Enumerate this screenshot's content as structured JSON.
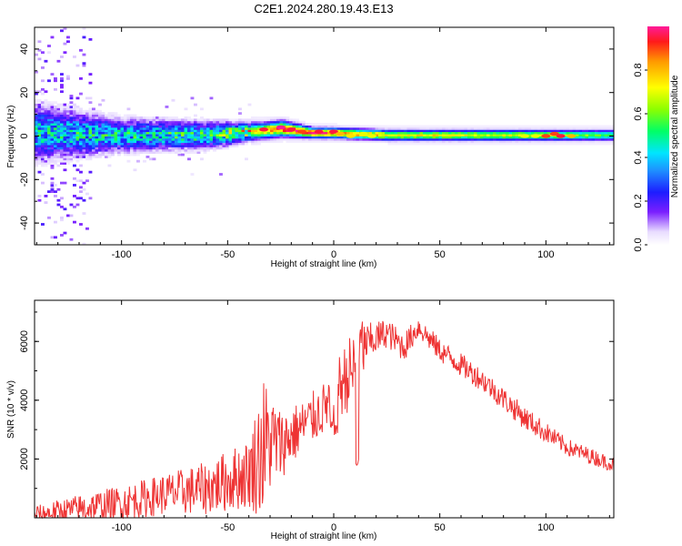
{
  "title": "C2E1.2024.280.19.43.E13",
  "chart_data": [
    {
      "type": "heatmap",
      "xlabel": "Height of straight line (km)",
      "ylabel": "Frequency (Hz)",
      "xlim": [
        -141,
        132
      ],
      "ylim": [
        -50,
        50
      ],
      "x_ticks": [
        -100,
        -50,
        0,
        50,
        100
      ],
      "y_ticks": [
        -40,
        -20,
        0,
        20,
        40
      ],
      "colorbar": {
        "label": "Normalized spectral amplitude",
        "range": [
          0,
          1
        ],
        "ticks": [
          "0.0",
          "0.2",
          "0.4",
          "0.6",
          "0.8"
        ],
        "tick_values": [
          0,
          0.2,
          0.4,
          0.6,
          0.8
        ]
      },
      "band_profile": [
        {
          "x": -141,
          "center": 1,
          "halfwidth": 10,
          "peak_amplitude": 0.45
        },
        {
          "x": -100,
          "center": 0,
          "halfwidth": 6,
          "peak_amplitude": 0.45
        },
        {
          "x": -60,
          "center": 0,
          "halfwidth": 5,
          "peak_amplitude": 0.5
        },
        {
          "x": -35,
          "center": 2,
          "halfwidth": 3,
          "peak_amplitude": 0.8
        },
        {
          "x": -25,
          "center": 3,
          "halfwidth": 3,
          "peak_amplitude": 0.95
        },
        {
          "x": -10,
          "center": 1,
          "halfwidth": 2,
          "peak_amplitude": 0.95
        },
        {
          "x": 0,
          "center": 1,
          "halfwidth": 2,
          "peak_amplitude": 0.9
        },
        {
          "x": 25,
          "center": 0,
          "halfwidth": 2,
          "peak_amplitude": 0.75
        },
        {
          "x": 100,
          "center": 0,
          "halfwidth": 2,
          "peak_amplitude": 0.7
        },
        {
          "x": 132,
          "center": 0,
          "halfwidth": 2,
          "peak_amplitude": 0.55
        }
      ],
      "hotspots": [
        {
          "x": -33,
          "y": 3,
          "amplitude": 0.95
        },
        {
          "x": -25,
          "y": 4,
          "amplitude": 1.0
        },
        {
          "x": -20,
          "y": 3,
          "amplitude": 0.95
        },
        {
          "x": -15,
          "y": 2,
          "amplitude": 0.9
        },
        {
          "x": -7,
          "y": 2,
          "amplitude": 0.95
        },
        {
          "x": 0,
          "y": 2,
          "amplitude": 0.95
        },
        {
          "x": 3,
          "y": 1,
          "amplitude": 0.8
        },
        {
          "x": 8,
          "y": 0,
          "amplitude": 0.75
        },
        {
          "x": 14,
          "y": 1,
          "amplitude": 0.7
        },
        {
          "x": 18,
          "y": 0,
          "amplitude": 0.7
        },
        {
          "x": 90,
          "y": 0,
          "amplitude": 0.7
        },
        {
          "x": 95,
          "y": 0,
          "amplitude": 0.7
        },
        {
          "x": 100,
          "y": 0,
          "amplitude": 0.9
        },
        {
          "x": 104,
          "y": 1,
          "amplitude": 0.9
        },
        {
          "x": 107,
          "y": 0,
          "amplitude": 0.95
        },
        {
          "x": 112,
          "y": 0,
          "amplitude": 0.8
        }
      ]
    },
    {
      "type": "line",
      "xlabel": "Height of straight line (km)",
      "ylabel": "SNR (10 * v/v)",
      "xlim": [
        -141,
        132
      ],
      "ylim": [
        0,
        7400
      ],
      "x_ticks": [
        -100,
        -50,
        0,
        50,
        100
      ],
      "y_ticks": [
        2000,
        4000,
        6000
      ],
      "color": "#ee3333",
      "envelope": [
        {
          "x": -141,
          "y": 100,
          "noise": 300
        },
        {
          "x": -120,
          "y": 300,
          "noise": 500
        },
        {
          "x": -100,
          "y": 500,
          "noise": 600
        },
        {
          "x": -80,
          "y": 800,
          "noise": 700
        },
        {
          "x": -60,
          "y": 1000,
          "noise": 900
        },
        {
          "x": -40,
          "y": 1500,
          "noise": 1200
        },
        {
          "x": -33,
          "y": 2400,
          "noise": 2500
        },
        {
          "x": -30,
          "y": 2600,
          "noise": 1800
        },
        {
          "x": -25,
          "y": 2500,
          "noise": 1200
        },
        {
          "x": -15,
          "y": 3100,
          "noise": 900
        },
        {
          "x": -5,
          "y": 3700,
          "noise": 900
        },
        {
          "x": 0,
          "y": 4200,
          "noise": 1000
        },
        {
          "x": 5,
          "y": 4700,
          "noise": 1200
        },
        {
          "x": 10,
          "y": 5100,
          "noise": 1400
        },
        {
          "x": 12,
          "y": 5600,
          "noise": 1800
        },
        {
          "x": 15,
          "y": 5900,
          "noise": 700
        },
        {
          "x": 25,
          "y": 6300,
          "noise": 500
        },
        {
          "x": 33,
          "y": 5800,
          "noise": 500
        },
        {
          "x": 40,
          "y": 6500,
          "noise": 400
        },
        {
          "x": 50,
          "y": 5700,
          "noise": 400
        },
        {
          "x": 70,
          "y": 4700,
          "noise": 400
        },
        {
          "x": 90,
          "y": 3400,
          "noise": 400
        },
        {
          "x": 110,
          "y": 2400,
          "noise": 300
        },
        {
          "x": 132,
          "y": 1800,
          "noise": 250
        }
      ],
      "dips": [
        {
          "x": 11,
          "y": 1600
        },
        {
          "x": 1,
          "y": 2800
        },
        {
          "x": -1,
          "y": 2900
        }
      ]
    }
  ]
}
